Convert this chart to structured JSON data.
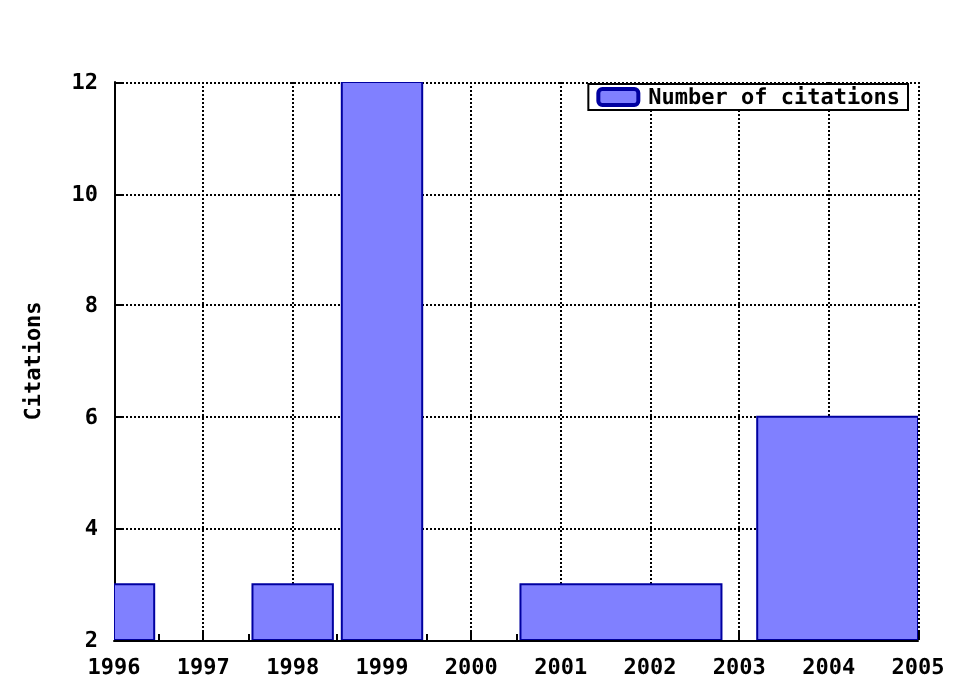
{
  "chart_data": {
    "type": "histogram",
    "ylabel": "Citations",
    "bins": [
      1996,
      1996.45,
      1997.55,
      1998.45,
      1998.55,
      1999.45,
      2000.55,
      2002.8,
      2003.2,
      2005
    ],
    "series": [
      {
        "name": "Number of citations",
        "color": "#8080ff",
        "values": [
          3,
          null,
          3,
          null,
          12,
          null,
          3,
          null,
          6
        ]
      }
    ],
    "xlim": [
      1996,
      2005
    ],
    "xticks": [
      1996,
      1997,
      1998,
      1999,
      2000,
      2001,
      2002,
      2003,
      2004,
      2005
    ],
    "ylim": [
      2,
      12
    ],
    "yticks": [
      2,
      4,
      6,
      8,
      10,
      12
    ],
    "grid": true,
    "legend": "top right"
  }
}
